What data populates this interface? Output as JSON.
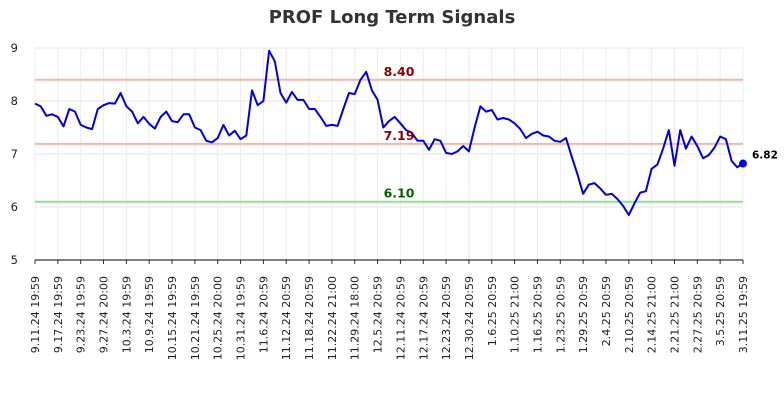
{
  "chart_data": {
    "type": "line",
    "title": "PROF Long Term Signals",
    "xlabel": "",
    "ylabel": "",
    "ylim": [
      5,
      9
    ],
    "y_ticks": [
      5,
      6,
      7,
      8,
      9
    ],
    "grid": true,
    "x_tick_labels": [
      "9.11.24 19:59",
      "9.17.24 19:59",
      "9.23.24 19:59",
      "9.27.24 20:00",
      "10.3.24 19:59",
      "10.9.24 19:59",
      "10.15.24 19:59",
      "10.21.24 19:59",
      "10.25.24 20:00",
      "10.31.24 19:59",
      "11.6.24 20:59",
      "11.12.24 20:59",
      "11.18.24 20:59",
      "11.22.24 21:00",
      "11.29.24 18:00",
      "12.5.24 20:59",
      "12.11.24 20:59",
      "12.17.24 20:59",
      "12.23.24 20:59",
      "12.30.24 20:59",
      "1.6.25 20:59",
      "1.10.25 21:00",
      "1.16.25 20:59",
      "1.23.25 20:59",
      "1.29.25 20:59",
      "2.4.25 20:59",
      "2.10.25 20:59",
      "2.14.25 21:00",
      "2.21.25 21:00",
      "2.27.25 20:59",
      "3.5.25 20:59",
      "3.11.25 19:59"
    ],
    "series": [
      {
        "color": "#0000dd",
        "values": [
          7.95,
          7.9,
          7.72,
          7.75,
          7.7,
          7.52,
          7.85,
          7.8,
          7.55,
          7.5,
          7.47,
          7.85,
          7.92,
          7.96,
          7.95,
          8.15,
          7.9,
          7.8,
          7.58,
          7.7,
          7.57,
          7.48,
          7.7,
          7.8,
          7.62,
          7.6,
          7.75,
          7.75,
          7.5,
          7.45,
          7.25,
          7.22,
          7.3,
          7.55,
          7.35,
          7.44,
          7.28,
          7.35,
          8.2,
          7.92,
          8.0,
          8.95,
          8.75,
          8.15,
          7.97,
          8.17,
          8.02,
          8.02,
          7.85,
          7.85,
          7.7,
          7.53,
          7.55,
          7.53,
          7.85,
          8.15,
          8.13,
          8.4,
          8.55,
          8.2,
          8.02,
          7.5,
          7.62,
          7.7,
          7.58,
          7.45,
          7.4,
          7.25,
          7.25,
          7.08,
          7.28,
          7.25,
          7.02,
          7.0,
          7.05,
          7.15,
          7.05,
          7.5,
          7.9,
          7.8,
          7.83,
          7.65,
          7.68,
          7.65,
          7.58,
          7.47,
          7.3,
          7.38,
          7.42,
          7.35,
          7.33,
          7.25,
          7.23,
          7.3,
          6.95,
          6.62,
          6.25,
          6.42,
          6.45,
          6.35,
          6.23,
          6.25,
          6.15,
          6.02,
          5.85,
          6.07,
          6.27,
          6.3,
          6.72,
          6.8,
          7.1,
          7.45,
          6.78,
          7.45,
          7.1,
          7.33,
          7.15,
          6.92,
          6.98,
          7.12,
          7.33,
          7.28,
          6.87,
          6.75,
          6.82
        ]
      }
    ],
    "reference_lines": [
      {
        "value": 8.4,
        "label": "8.40",
        "line_color": "#f4b6a8",
        "label_color": "#8b0000"
      },
      {
        "value": 7.19,
        "label": "7.19",
        "line_color": "#f4b6a8",
        "label_color": "#8b0000"
      },
      {
        "value": 6.1,
        "label": "6.10",
        "line_color": "#90e090",
        "label_color": "#006400"
      }
    ],
    "last_value": {
      "value": 6.82,
      "label": "6.82"
    }
  }
}
